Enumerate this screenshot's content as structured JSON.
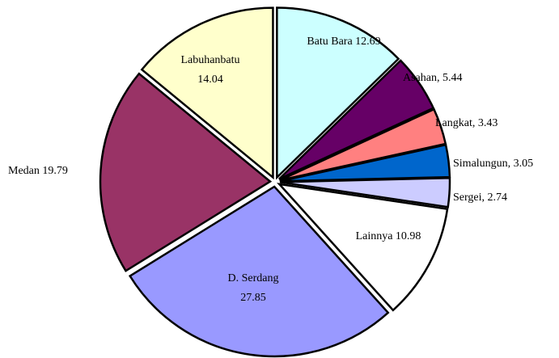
{
  "chart_data": {
    "type": "pie",
    "values": [
      12.69,
      5.44,
      3.43,
      3.05,
      2.74,
      10.98,
      27.85,
      19.79,
      14.04
    ],
    "labels": [
      [
        "Batu Bara 12.69"
      ],
      [
        "Asahan, 5.44"
      ],
      [
        "Langkat, 3.43"
      ],
      [
        "Simalungun, 3.05"
      ],
      [
        "Sergei, 2.74"
      ],
      [
        "Lainnya 10.98"
      ],
      [
        "D. Serdang",
        "27.85"
      ],
      [
        "Medan 19.79"
      ],
      [
        "Labuhanbatu",
        "14.04"
      ]
    ],
    "colors": [
      "#ccffff",
      "#660066",
      "#ff8080",
      "#0066cc",
      "#ccccff",
      "#ffffff",
      "#9999ff",
      "#993366",
      "#ffffcc"
    ]
  }
}
